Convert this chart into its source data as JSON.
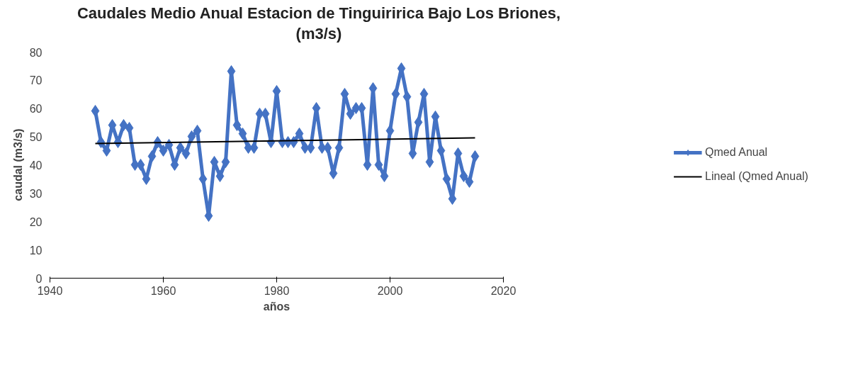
{
  "chart_data": {
    "type": "line",
    "title": "Caudales Medio Anual Estacion de Tinguiririca Bajo Los Briones,\n(m3/s)",
    "xlabel": "años",
    "ylabel": "caudal (m3/s)",
    "xlim": [
      1940,
      2020
    ],
    "xticks": [
      1940,
      1960,
      1980,
      2000,
      2020
    ],
    "ylim": [
      0,
      80
    ],
    "yticks": [
      0,
      10,
      20,
      30,
      40,
      50,
      60,
      70,
      80
    ],
    "grid": false,
    "legend": "right",
    "series": [
      {
        "name": "Qmed Anual",
        "color": "#4472c4",
        "marker": "diamond",
        "x": [
          1948,
          1949,
          1950,
          1951,
          1952,
          1953,
          1954,
          1955,
          1956,
          1957,
          1958,
          1959,
          1960,
          1961,
          1962,
          1963,
          1964,
          1965,
          1966,
          1967,
          1968,
          1969,
          1970,
          1971,
          1972,
          1973,
          1974,
          1975,
          1976,
          1977,
          1978,
          1979,
          1980,
          1981,
          1982,
          1983,
          1984,
          1985,
          1986,
          1987,
          1988,
          1989,
          1990,
          1991,
          1992,
          1993,
          1994,
          1995,
          1996,
          1997,
          1998,
          1999,
          2000,
          2001,
          2002,
          2003,
          2004,
          2005,
          2006,
          2007,
          2008,
          2009,
          2010,
          2011,
          2012,
          2013,
          2014,
          2015
        ],
        "values": [
          59,
          48,
          45,
          54,
          48,
          54,
          53,
          40,
          40,
          35,
          43,
          48,
          45,
          47,
          40,
          46,
          44,
          50,
          52,
          35,
          22,
          41,
          36,
          41,
          73,
          54,
          51,
          46,
          46,
          58,
          58,
          48,
          66,
          48,
          48,
          48,
          51,
          46,
          46,
          60,
          46,
          46,
          37,
          46,
          65,
          58,
          60,
          60,
          40,
          67,
          40,
          36,
          52,
          65,
          74,
          64,
          44,
          55,
          65,
          41,
          57,
          45,
          35,
          28,
          44,
          36,
          34,
          43
        ]
      },
      {
        "name": "Lineal (Qmed Anual)",
        "color": "#000000",
        "marker": "none",
        "x": [
          1948,
          2015
        ],
        "values": [
          47.5,
          49.5
        ]
      }
    ]
  }
}
